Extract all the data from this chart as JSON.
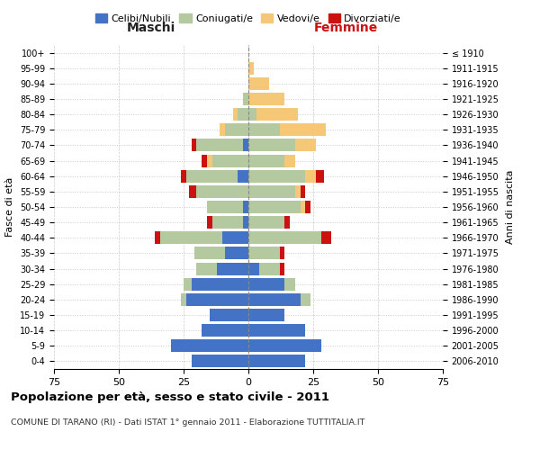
{
  "age_groups": [
    "0-4",
    "5-9",
    "10-14",
    "15-19",
    "20-24",
    "25-29",
    "30-34",
    "35-39",
    "40-44",
    "45-49",
    "50-54",
    "55-59",
    "60-64",
    "65-69",
    "70-74",
    "75-79",
    "80-84",
    "85-89",
    "90-94",
    "95-99",
    "100+"
  ],
  "birth_years": [
    "2006-2010",
    "2001-2005",
    "1996-2000",
    "1991-1995",
    "1986-1990",
    "1981-1985",
    "1976-1980",
    "1971-1975",
    "1966-1970",
    "1961-1965",
    "1956-1960",
    "1951-1955",
    "1946-1950",
    "1941-1945",
    "1936-1940",
    "1931-1935",
    "1926-1930",
    "1921-1925",
    "1916-1920",
    "1911-1915",
    "≤ 1910"
  ],
  "colors": {
    "celibi": "#4472C4",
    "coniugati": "#B5C9A0",
    "vedovi": "#F5C878",
    "divorziati": "#CC1111"
  },
  "maschi": {
    "celibi": [
      22,
      30,
      18,
      15,
      24,
      22,
      12,
      9,
      10,
      2,
      2,
      0,
      4,
      0,
      2,
      0,
      0,
      0,
      0,
      0,
      0
    ],
    "coniugati": [
      0,
      0,
      0,
      0,
      2,
      3,
      8,
      12,
      24,
      12,
      14,
      20,
      20,
      14,
      18,
      9,
      4,
      2,
      0,
      0,
      0
    ],
    "vedovi": [
      0,
      0,
      0,
      0,
      0,
      0,
      0,
      0,
      0,
      0,
      0,
      0,
      0,
      2,
      0,
      2,
      2,
      0,
      0,
      0,
      0
    ],
    "divorziati": [
      0,
      0,
      0,
      0,
      0,
      0,
      0,
      0,
      2,
      2,
      0,
      3,
      2,
      2,
      2,
      0,
      0,
      0,
      0,
      0,
      0
    ]
  },
  "femmine": {
    "nubili": [
      22,
      28,
      22,
      14,
      20,
      14,
      4,
      0,
      0,
      0,
      0,
      0,
      0,
      0,
      0,
      0,
      0,
      0,
      0,
      0,
      0
    ],
    "coniugate": [
      0,
      0,
      0,
      0,
      4,
      4,
      8,
      12,
      28,
      14,
      20,
      18,
      22,
      14,
      18,
      12,
      3,
      0,
      0,
      0,
      0
    ],
    "vedove": [
      0,
      0,
      0,
      0,
      0,
      0,
      0,
      0,
      0,
      0,
      2,
      2,
      4,
      4,
      8,
      18,
      16,
      14,
      8,
      2,
      0
    ],
    "divorziate": [
      0,
      0,
      0,
      0,
      0,
      0,
      2,
      2,
      4,
      2,
      2,
      2,
      3,
      0,
      0,
      0,
      0,
      0,
      0,
      0,
      0
    ]
  },
  "xlim": 75,
  "title": "Popolazione per età, sesso e stato civile - 2011",
  "subtitle": "COMUNE DI TARANO (RI) - Dati ISTAT 1° gennaio 2011 - Elaborazione TUTTITALIA.IT",
  "ylabel_left": "Fasce di età",
  "ylabel_right": "Anni di nascita",
  "xlabel_left": "Maschi",
  "xlabel_right": "Femmine",
  "legend_labels": [
    "Celibi/Nubili",
    "Coniugati/e",
    "Vedovi/e",
    "Divorziati/e"
  ],
  "bg_color": "#ffffff",
  "grid_color": "#cccccc"
}
